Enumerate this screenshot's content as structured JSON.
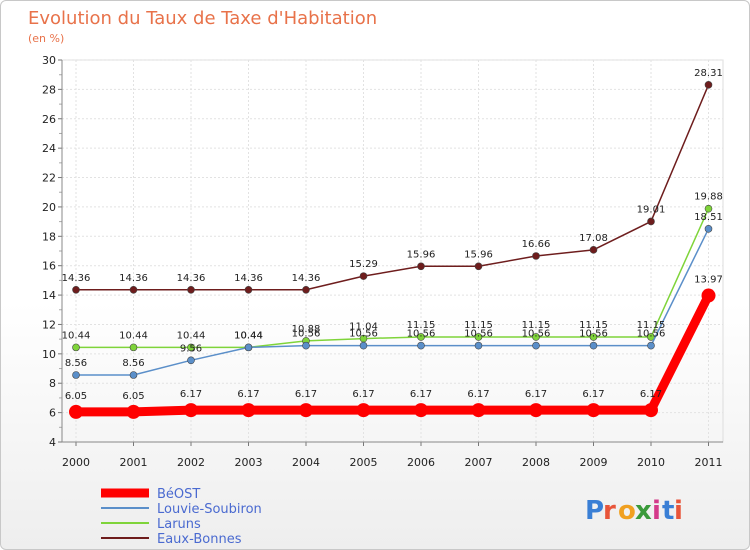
{
  "chart_data": {
    "type": "line",
    "title": "Evolution du Taux de Taxe d'Habitation",
    "subtitle": "(en %)",
    "xlabel": "",
    "ylabel": "",
    "x": [
      "2000",
      "2001",
      "2002",
      "2003",
      "2004",
      "2005",
      "2006",
      "2007",
      "2008",
      "2009",
      "2010",
      "2011"
    ],
    "ylim": [
      4,
      30
    ],
    "yticks": [
      4,
      6,
      8,
      10,
      12,
      14,
      16,
      18,
      20,
      22,
      24,
      26,
      28,
      30
    ],
    "grid": true,
    "legend_position": "bottom-left",
    "series": [
      {
        "name": "BéOST",
        "color": "#ff0000",
        "emphasis": true,
        "values": [
          6.05,
          6.05,
          6.17,
          6.17,
          6.17,
          6.17,
          6.17,
          6.17,
          6.17,
          6.17,
          6.17,
          13.97
        ],
        "labels": [
          "6.05",
          "6.05",
          "6.17",
          "6.17",
          "6.17",
          "6.17",
          "6.17",
          "6.17",
          "6.17",
          "6.17",
          "6.17",
          "13.97"
        ]
      },
      {
        "name": "Louvie-Soubiron",
        "color": "#5b8fc9",
        "emphasis": false,
        "values": [
          8.56,
          8.56,
          9.56,
          10.44,
          10.56,
          10.56,
          10.56,
          10.56,
          10.56,
          10.56,
          10.56,
          18.51
        ],
        "labels": [
          "8.56",
          "8.56",
          "9.56",
          "10.44",
          "10.56",
          "10.56",
          "10.56",
          "10.56",
          "10.56",
          "10.56",
          "10.56",
          "18.51"
        ]
      },
      {
        "name": "Laruns",
        "color": "#7fd43a",
        "emphasis": false,
        "values": [
          10.44,
          10.44,
          10.44,
          10.44,
          10.88,
          11.04,
          11.15,
          11.15,
          11.15,
          11.15,
          11.15,
          19.88
        ],
        "labels": [
          "10.44",
          "10.44",
          "10.44",
          "10.44",
          "10.88",
          "11.04",
          "11.15",
          "11.15",
          "11.15",
          "11.15",
          "11.15",
          "19.88"
        ]
      },
      {
        "name": "Eaux-Bonnes",
        "color": "#6e1d1d",
        "emphasis": false,
        "values": [
          14.36,
          14.36,
          14.36,
          14.36,
          14.36,
          15.29,
          15.96,
          15.96,
          16.66,
          17.08,
          19.01,
          28.31
        ],
        "labels": [
          "14.36",
          "14.36",
          "14.36",
          "14.36",
          "14.36",
          "15.29",
          "15.96",
          "15.96",
          "16.66",
          "17.08",
          "19.01",
          "28.31"
        ]
      }
    ]
  },
  "logo": {
    "text": "Proxiti",
    "colors": [
      "#3a7fd5",
      "#e8553a",
      "#f0a020",
      "#3a9a3a",
      "#d43a8a",
      "#3a7fd5",
      "#e8553a"
    ]
  }
}
